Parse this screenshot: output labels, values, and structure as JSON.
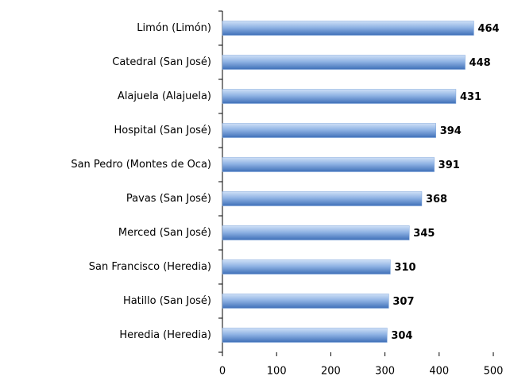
{
  "chart_data": {
    "type": "bar",
    "orientation": "horizontal",
    "categories": [
      "Limón (Limón)",
      "Catedral (San José)",
      "Alajuela (Alajuela)",
      "Hospital (San José)",
      "San Pedro (Montes de Oca)",
      "Pavas (San José)",
      "Merced (San José)",
      "San Francisco (Heredia)",
      "Hatillo (San José)",
      "Heredia (Heredia)"
    ],
    "values": [
      464,
      448,
      431,
      394,
      391,
      368,
      345,
      310,
      307,
      304
    ],
    "color": "#7fa6dc",
    "xlim": [
      0,
      500
    ],
    "xticks": [
      0,
      100,
      200,
      300,
      400,
      500
    ],
    "grid": false
  }
}
